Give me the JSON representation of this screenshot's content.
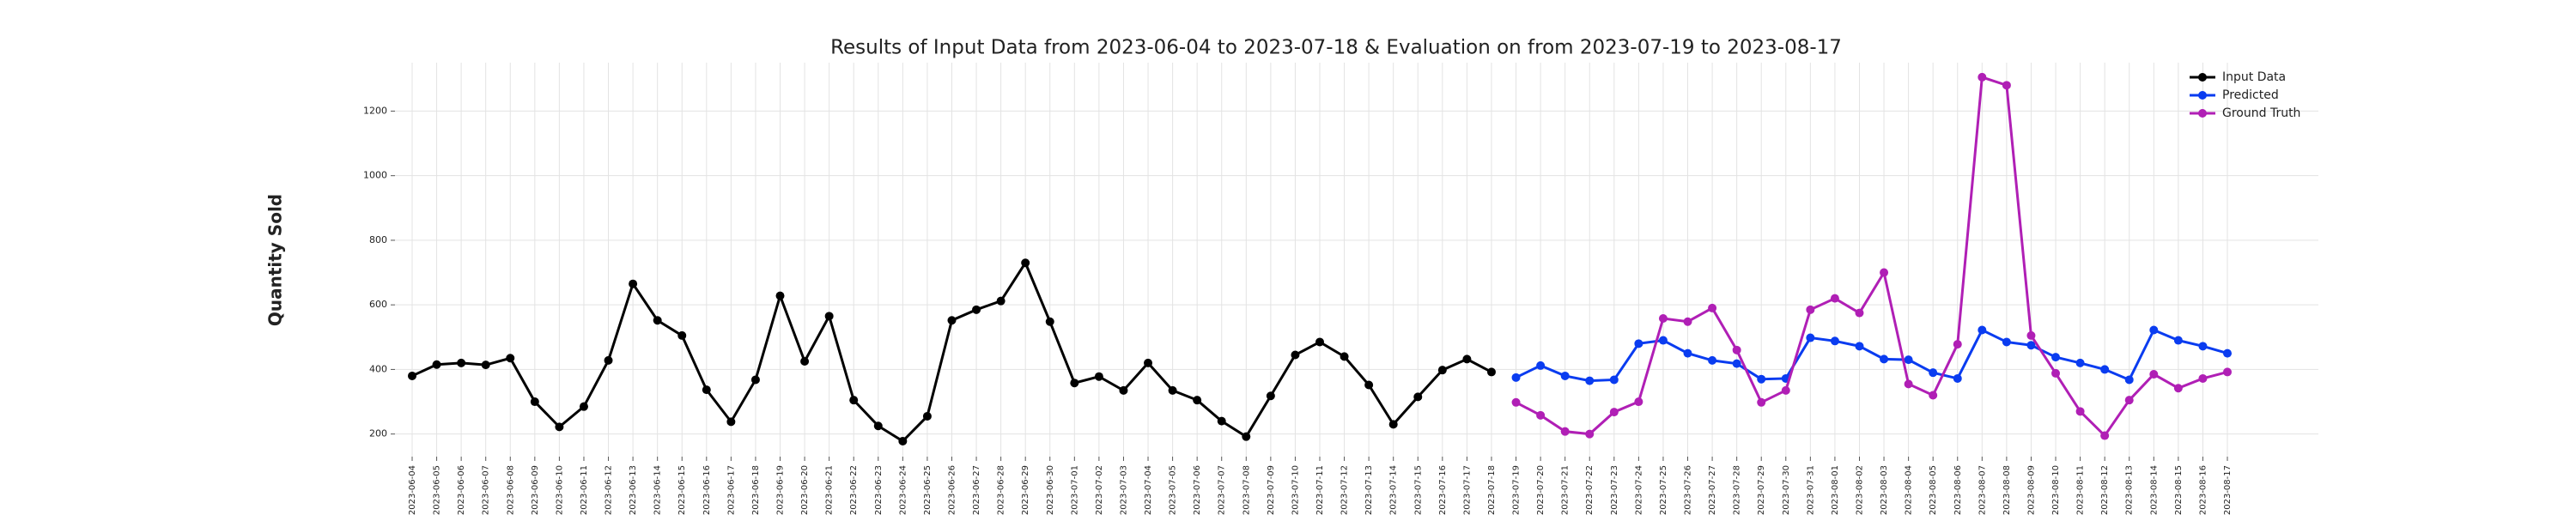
{
  "chart_data": {
    "type": "line",
    "title": "Results of Input Data from 2023-06-04 to 2023-07-18 & Evaluation on from 2023-07-19 to 2023-08-17",
    "y_label": "Quantity Sold",
    "x": [
      "2023-06-04",
      "2023-06-05",
      "2023-06-06",
      "2023-06-07",
      "2023-06-08",
      "2023-06-09",
      "2023-06-10",
      "2023-06-11",
      "2023-06-12",
      "2023-06-13",
      "2023-06-14",
      "2023-06-15",
      "2023-06-16",
      "2023-06-17",
      "2023-06-18",
      "2023-06-19",
      "2023-06-20",
      "2023-06-21",
      "2023-06-22",
      "2023-06-23",
      "2023-06-24",
      "2023-06-25",
      "2023-06-26",
      "2023-06-27",
      "2023-06-28",
      "2023-06-29",
      "2023-06-30",
      "2023-07-01",
      "2023-07-02",
      "2023-07-03",
      "2023-07-04",
      "2023-07-05",
      "2023-07-06",
      "2023-07-07",
      "2023-07-08",
      "2023-07-09",
      "2023-07-10",
      "2023-07-11",
      "2023-07-12",
      "2023-07-13",
      "2023-07-14",
      "2023-07-15",
      "2023-07-16",
      "2023-07-17",
      "2023-07-18",
      "2023-07-19",
      "2023-07-20",
      "2023-07-21",
      "2023-07-22",
      "2023-07-23",
      "2023-07-24",
      "2023-07-25",
      "2023-07-26",
      "2023-07-27",
      "2023-07-28",
      "2023-07-29",
      "2023-07-30",
      "2023-07-31",
      "2023-08-01",
      "2023-08-02",
      "2023-08-03",
      "2023-08-04",
      "2023-08-05",
      "2023-08-06",
      "2023-08-07",
      "2023-08-08",
      "2023-08-09",
      "2023-08-10",
      "2023-08-11",
      "2023-08-12",
      "2023-08-13",
      "2023-08-14",
      "2023-08-15",
      "2023-08-16",
      "2023-08-17"
    ],
    "series": [
      {
        "name": "Input Data",
        "color": "#000000",
        "values": [
          380,
          415,
          420,
          414,
          435,
          300,
          222,
          285,
          428,
          665,
          552,
          505,
          337,
          238,
          368,
          628,
          425,
          565,
          305,
          225,
          178,
          255,
          552,
          585,
          612,
          730,
          548,
          358,
          378,
          335,
          420,
          335,
          305,
          240,
          192,
          318,
          445,
          485,
          440,
          352,
          230,
          315,
          398,
          432,
          392,
          null,
          null,
          null,
          null,
          null,
          null,
          null,
          null,
          null,
          null,
          null,
          null,
          null,
          null,
          null,
          null,
          null,
          null,
          null,
          null,
          null,
          null,
          null,
          null,
          null,
          null,
          null,
          null,
          null,
          null
        ]
      },
      {
        "name": "Predicted",
        "color": "#0a3cf0",
        "values": [
          null,
          null,
          null,
          null,
          null,
          null,
          null,
          null,
          null,
          null,
          null,
          null,
          null,
          null,
          null,
          null,
          null,
          null,
          null,
          null,
          null,
          null,
          null,
          null,
          null,
          null,
          null,
          null,
          null,
          null,
          null,
          null,
          null,
          null,
          null,
          null,
          null,
          null,
          null,
          null,
          null,
          null,
          null,
          null,
          null,
          375,
          412,
          380,
          365,
          368,
          480,
          490,
          450,
          428,
          418,
          370,
          372,
          498,
          488,
          472,
          432,
          430,
          390,
          372,
          522,
          485,
          475,
          438,
          420,
          400,
          368,
          522,
          490,
          472,
          450
        ]
      },
      {
        "name": "Ground Truth",
        "color": "#b01fb5",
        "values": [
          null,
          null,
          null,
          null,
          null,
          null,
          null,
          null,
          null,
          null,
          null,
          null,
          null,
          null,
          null,
          null,
          null,
          null,
          null,
          null,
          null,
          null,
          null,
          null,
          null,
          null,
          null,
          null,
          null,
          null,
          null,
          null,
          null,
          null,
          null,
          null,
          null,
          null,
          null,
          null,
          null,
          null,
          null,
          null,
          null,
          298,
          258,
          208,
          200,
          268,
          300,
          558,
          548,
          590,
          460,
          298,
          335,
          585,
          620,
          575,
          700,
          355,
          320,
          478,
          1305,
          1280,
          505,
          388,
          270,
          195,
          305,
          385,
          342,
          372,
          392
        ]
      }
    ],
    "ylim": [
      130,
      1350
    ],
    "yticks": [
      200,
      400,
      600,
      800,
      1000,
      1200
    ],
    "grid": true,
    "legend": "upper right"
  }
}
